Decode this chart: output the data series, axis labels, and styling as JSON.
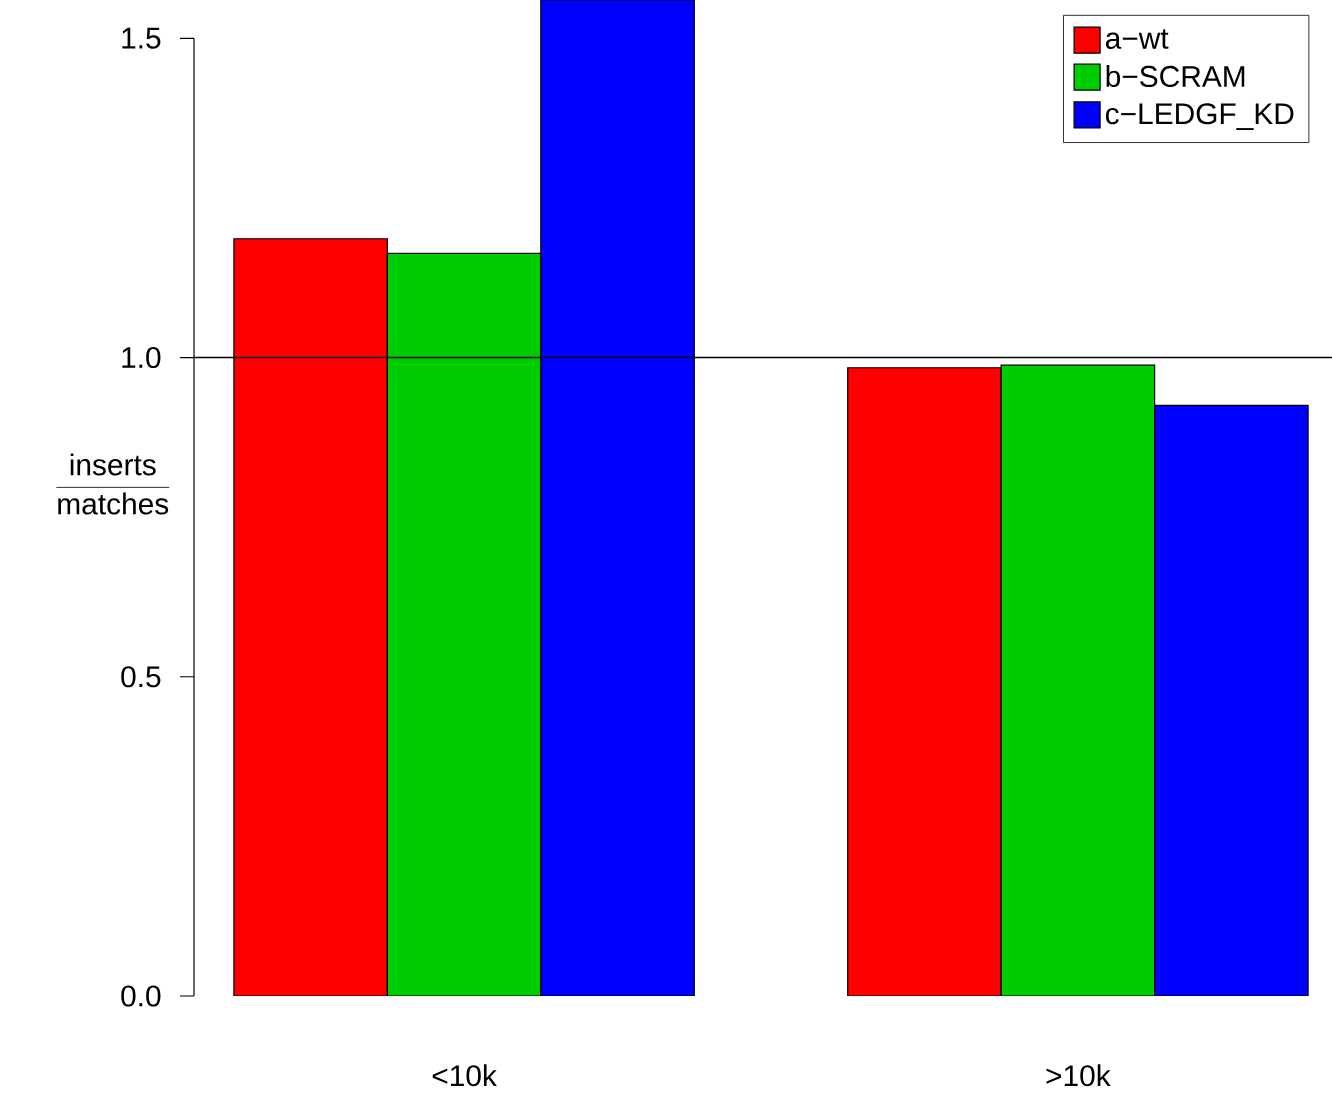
{
  "chart_data": {
    "type": "bar",
    "ylabel": "\\frac{\\mathrm{inserts}}{\\mathrm{matches}}",
    "categories": [
      "<10k",
      ">10k"
    ],
    "series": [
      {
        "name": "a−wt",
        "color": "#ff0000",
        "values": [
          1.186,
          0.984
        ]
      },
      {
        "name": "b−SCRAM",
        "color": "#00cd00",
        "values": [
          1.163,
          0.988
        ]
      },
      {
        "name": "c−LEDGF_KD",
        "color": "#0000ff",
        "values": [
          1.56,
          0.925
        ]
      }
    ],
    "ylim": [
      0,
      1.56
    ],
    "yticks": [
      {
        "value": 0,
        "label": "0.0"
      },
      {
        "value": 0.5,
        "label": "0.5"
      },
      {
        "value": 1,
        "label": "1.0"
      },
      {
        "value": 1.5,
        "label": "1.5"
      }
    ],
    "ref_lines": [
      {
        "axis": "y",
        "value": 1,
        "color": "#000000"
      }
    ],
    "legend": "top right",
    "grid": false
  }
}
